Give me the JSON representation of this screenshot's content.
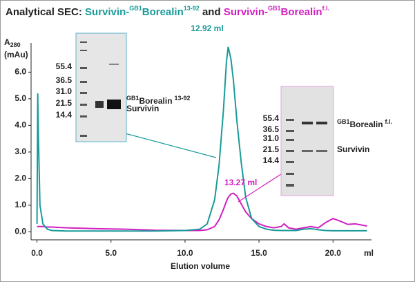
{
  "chart_data": {
    "type": "line",
    "title": [
      "Analytical SEC:",
      "Survivin-",
      "GB1",
      "Borealin",
      "13-92",
      "and",
      "Survivin-",
      "GB1",
      "Borealin",
      "f.l."
    ],
    "xlabel": "Elution volume",
    "xunit": "ml",
    "ylabel": [
      "A",
      "280",
      "(mAu)"
    ],
    "xlim": [
      -0.4,
      22.6
    ],
    "ylim": [
      -0.3,
      7.1
    ],
    "xticks": [
      {
        "value": 0,
        "label": "0.0"
      },
      {
        "value": 5,
        "label": "5.0"
      },
      {
        "value": 10,
        "label": "10.0"
      },
      {
        "value": 15,
        "label": "15.0"
      },
      {
        "value": 20,
        "label": "20.0"
      }
    ],
    "yticks": [
      {
        "value": 0,
        "label": "0.0"
      },
      {
        "value": 1,
        "label": "1.0"
      },
      {
        "value": 2,
        "label": "2.0"
      },
      {
        "value": 3,
        "label": "3.0"
      },
      {
        "value": 4,
        "label": "4.0"
      },
      {
        "value": 5,
        "label": "5.0"
      },
      {
        "value": 6,
        "label": "6.0"
      }
    ],
    "x": [
      0,
      0.05,
      0.1,
      0.2,
      0.4,
      0.7,
      1,
      2,
      4,
      6,
      8,
      10,
      11,
      11.5,
      12,
      12.3,
      12.6,
      12.8,
      12.92,
      13.1,
      13.27,
      13.5,
      13.8,
      14.1,
      14.5,
      15,
      15.5,
      16,
      16.5,
      16.7,
      17,
      17.5,
      18,
      18.5,
      19,
      19.5,
      20,
      20.5,
      21,
      21.5,
      22.3
    ],
    "series": [
      {
        "color": "#1a9a9a",
        "values": [
          0.3,
          5.2,
          3.5,
          1.0,
          0.3,
          0.1,
          0.05,
          0.03,
          0.03,
          0.03,
          0.03,
          0.05,
          0.1,
          0.3,
          1.2,
          2.5,
          4.6,
          6.4,
          6.95,
          6.5,
          5.7,
          4.2,
          2.6,
          1.3,
          0.5,
          0.2,
          0.1,
          0.06,
          0.05,
          0.05,
          0.05,
          0.05,
          0.1,
          0.12,
          0.08,
          0.05,
          0.04,
          0.04,
          0.04,
          0.04,
          0.04
        ]
      },
      {
        "color": "#d21fc0",
        "values": [
          0.2,
          0.2,
          0.2,
          0.2,
          0.2,
          0.18,
          0.18,
          0.15,
          0.12,
          0.1,
          0.06,
          0.05,
          0.05,
          0.08,
          0.2,
          0.45,
          0.85,
          1.15,
          1.3,
          1.42,
          1.45,
          1.35,
          1.05,
          0.75,
          0.5,
          0.3,
          0.2,
          0.15,
          0.2,
          0.3,
          0.15,
          0.1,
          0.15,
          0.2,
          0.15,
          0.35,
          0.5,
          0.4,
          0.28,
          0.3,
          0.22
        ]
      }
    ],
    "annotations": [
      "12.92 ml",
      "13.27 ml"
    ],
    "insets": [
      {
        "markers": [
          "55.4",
          "36.5",
          "31.0",
          "21.5",
          "14.4"
        ],
        "label1": [
          "GB1",
          "Borealin",
          "13-92"
        ],
        "label2": "Survivin"
      },
      {
        "markers": [
          "55.4",
          "36.5",
          "31.0",
          "21.5",
          "14.4"
        ],
        "label1": [
          "GB1",
          "Borealin",
          "f.l."
        ],
        "label2": "Survivin"
      }
    ]
  }
}
